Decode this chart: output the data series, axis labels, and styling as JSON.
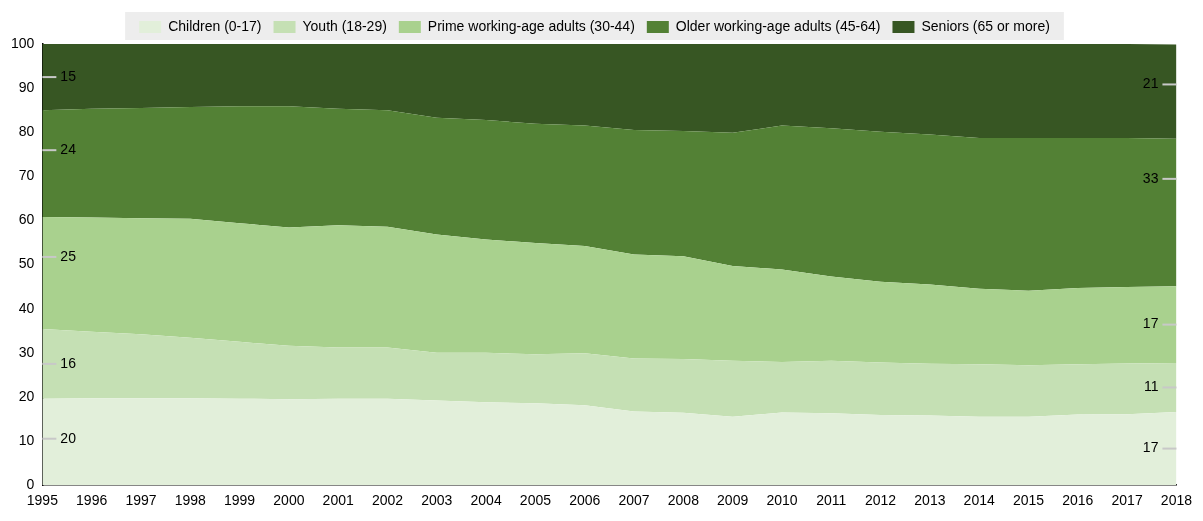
{
  "chart_data": {
    "type": "area",
    "stacked": true,
    "legend": "top",
    "x": [
      1995,
      1996,
      1997,
      1998,
      1999,
      2000,
      2001,
      2002,
      2003,
      2004,
      2005,
      2006,
      2007,
      2008,
      2009,
      2010,
      2011,
      2012,
      2013,
      2014,
      2015,
      2016,
      2017,
      2018
    ],
    "xlim": [
      1995,
      2018
    ],
    "xticks": [
      1995,
      1996,
      1997,
      1998,
      1999,
      2000,
      2001,
      2002,
      2003,
      2004,
      2005,
      2006,
      2007,
      2008,
      2009,
      2010,
      2011,
      2012,
      2013,
      2014,
      2015,
      2016,
      2017,
      2018
    ],
    "ylim": [
      0,
      100
    ],
    "yticks": [
      0,
      10,
      20,
      30,
      40,
      50,
      60,
      70,
      80,
      90,
      100
    ],
    "series": [
      {
        "name": "Children (0-17)",
        "color": "#e2efda",
        "values": [
          19.6,
          19.7,
          19.7,
          19.7,
          19.6,
          19.5,
          19.6,
          19.6,
          19.2,
          18.8,
          18.6,
          18.1,
          16.7,
          16.4,
          15.5,
          16.5,
          16.3,
          15.9,
          15.8,
          15.5,
          15.5,
          16.0,
          16.1,
          16.6
        ],
        "value_labels": [
          "20",
          null,
          null,
          null,
          null,
          null,
          null,
          null,
          null,
          null,
          null,
          null,
          null,
          null,
          null,
          null,
          null,
          null,
          null,
          null,
          null,
          null,
          null,
          "17"
        ]
      },
      {
        "name": "Youth (18-29)",
        "color": "#c5e0b4",
        "values": [
          15.8,
          15.1,
          14.5,
          13.7,
          12.9,
          12.1,
          11.6,
          11.6,
          10.8,
          11.2,
          11.1,
          11.8,
          12.0,
          12.2,
          12.7,
          11.4,
          11.9,
          11.9,
          11.7,
          11.9,
          11.7,
          11.4,
          11.5,
          11.1
        ],
        "value_labels": [
          "16",
          null,
          null,
          null,
          null,
          null,
          null,
          null,
          null,
          null,
          null,
          null,
          null,
          null,
          null,
          null,
          null,
          null,
          null,
          null,
          null,
          null,
          null,
          "11"
        ]
      },
      {
        "name": "Prime working-age adults (30-44)",
        "color": "#a9d18e",
        "values": [
          25.4,
          25.9,
          26.3,
          27.0,
          26.9,
          26.8,
          27.7,
          27.4,
          26.8,
          25.7,
          25.2,
          24.3,
          23.6,
          23.3,
          21.5,
          21.0,
          19.1,
          18.3,
          18.0,
          17.1,
          16.9,
          17.3,
          17.3,
          17.4
        ],
        "value_labels": [
          "25",
          null,
          null,
          null,
          null,
          null,
          null,
          null,
          null,
          null,
          null,
          null,
          null,
          null,
          null,
          null,
          null,
          null,
          null,
          null,
          null,
          null,
          null,
          "17"
        ]
      },
      {
        "name": "Older working-age adults (45-64)",
        "color": "#538135",
        "values": [
          24.2,
          24.6,
          25.0,
          25.3,
          26.5,
          27.5,
          26.4,
          26.4,
          26.5,
          27.1,
          27.0,
          27.3,
          28.2,
          28.4,
          30.2,
          32.6,
          33.6,
          34.0,
          34.0,
          34.2,
          34.6,
          34.0,
          33.8,
          33.4
        ],
        "value_labels": [
          "24",
          null,
          null,
          null,
          null,
          null,
          null,
          null,
          null,
          null,
          null,
          null,
          null,
          null,
          null,
          null,
          null,
          null,
          null,
          null,
          null,
          null,
          null,
          "33"
        ]
      },
      {
        "name": "Seniors (65 or more)",
        "color": "#375623",
        "values": [
          15.0,
          14.7,
          14.5,
          14.3,
          14.1,
          14.1,
          14.7,
          15.0,
          16.7,
          17.2,
          18.1,
          18.5,
          19.5,
          19.7,
          20.1,
          18.5,
          19.1,
          19.9,
          20.5,
          21.3,
          21.3,
          21.3,
          21.3,
          21.4
        ],
        "value_labels": [
          "15",
          null,
          null,
          null,
          null,
          null,
          null,
          null,
          null,
          null,
          null,
          null,
          null,
          null,
          null,
          null,
          null,
          null,
          null,
          null,
          null,
          null,
          null,
          "21"
        ]
      }
    ]
  }
}
